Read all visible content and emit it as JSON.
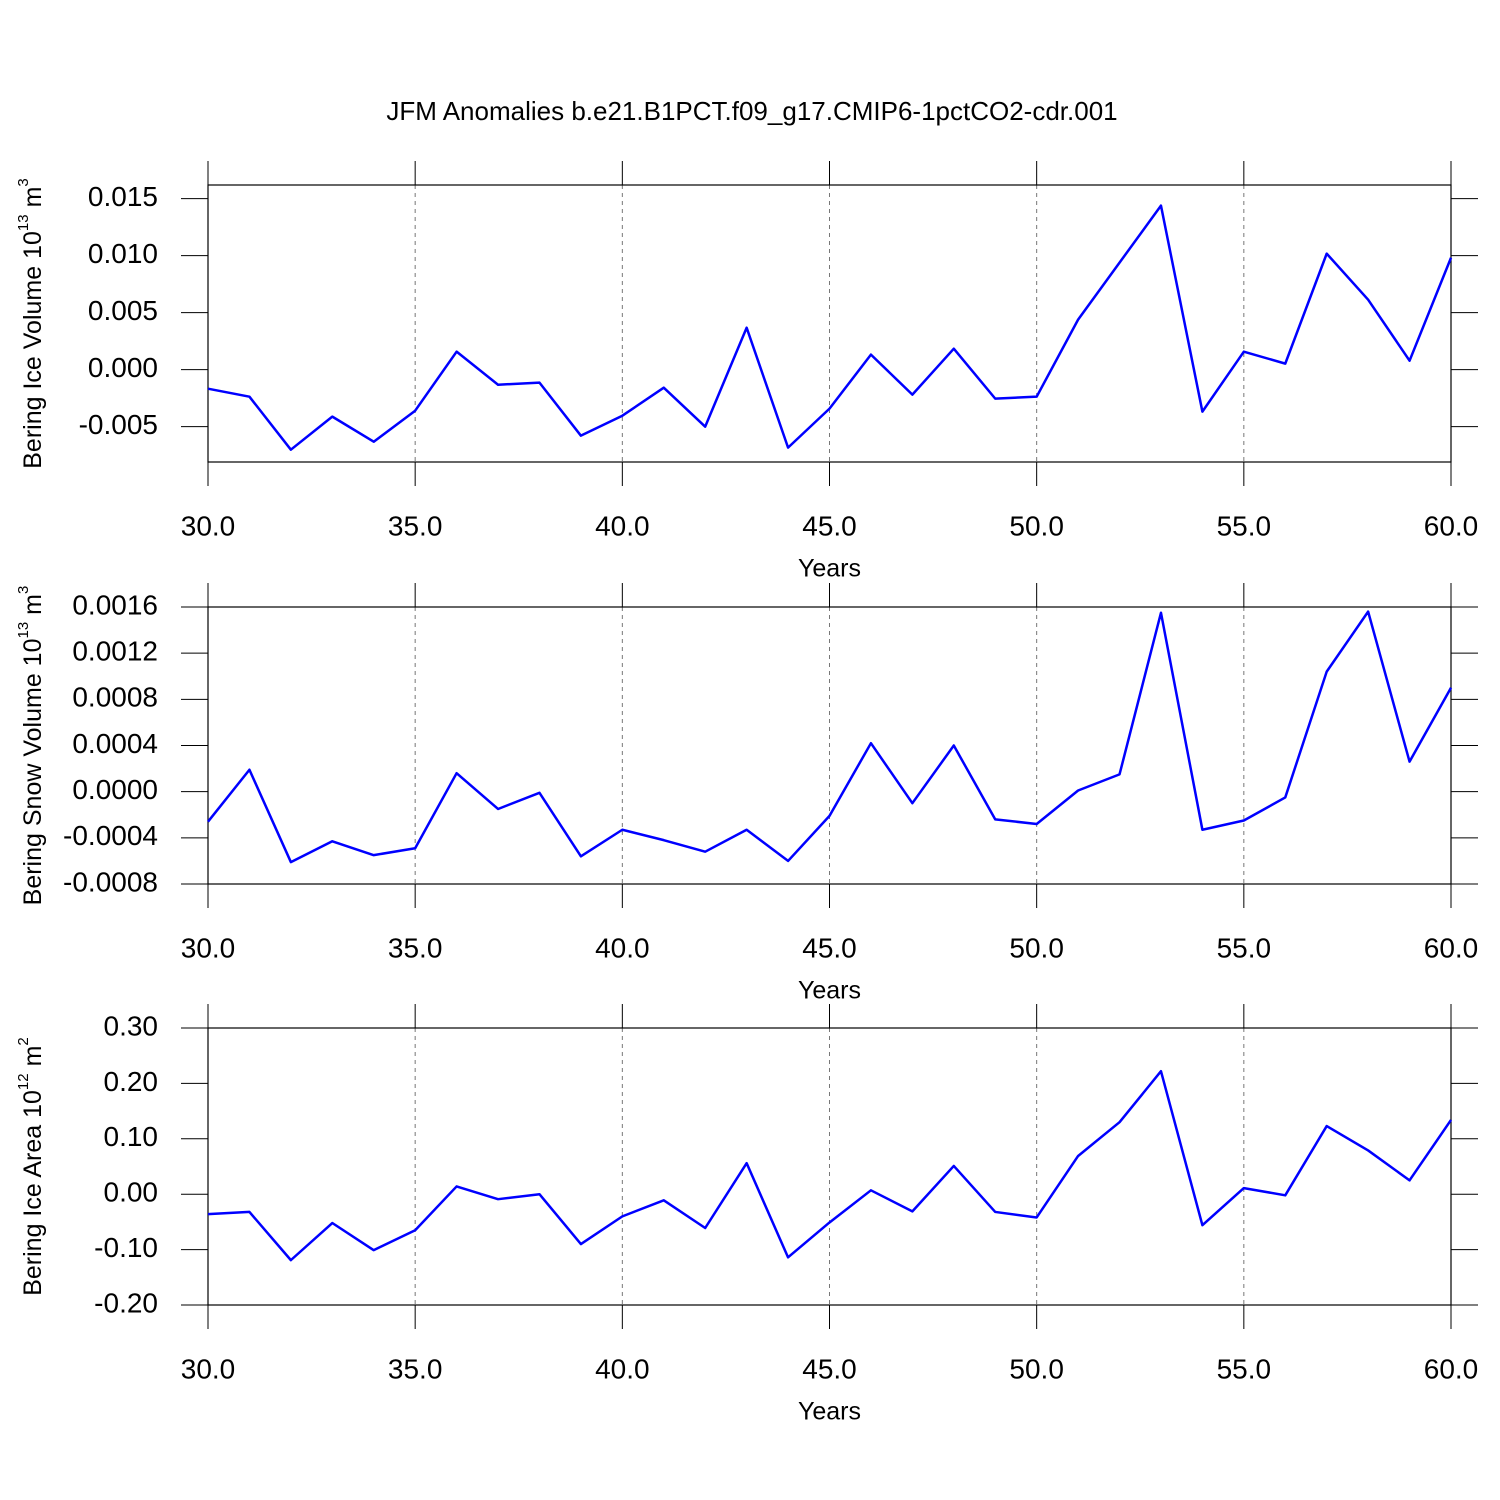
{
  "title": "JFM Anomalies b.e21.B1PCT.f09_g17.CMIP6-1pctCO2-cdr.001",
  "chart_data": [
    {
      "type": "line",
      "xlabel": "Years",
      "ylabel": {
        "text": "Bering Ice Volume 10",
        "exponent": "13",
        "unit": "m",
        "unit_exponent": "3"
      },
      "x": [
        30,
        31,
        32,
        33,
        34,
        35,
        36,
        37,
        38,
        39,
        40,
        41,
        42,
        43,
        44,
        45,
        46,
        47,
        48,
        49,
        50,
        51,
        52,
        53,
        54,
        55,
        56,
        57,
        58,
        59,
        60
      ],
      "series": [
        {
          "color": "#0000ff",
          "values": [
            -0.00167,
            -0.00237,
            -0.00702,
            -0.00412,
            -0.00632,
            -0.0036,
            0.00158,
            -0.00132,
            -0.00114,
            -0.00579,
            -0.00404,
            -0.00158,
            -0.005,
            0.00368,
            -0.00684,
            -0.00342,
            0.00132,
            -0.00219,
            0.00184,
            -0.00254,
            -0.00237,
            0.00439,
            0.00939,
            0.01439,
            -0.00368,
            0.00158,
            0.00053,
            0.01018,
            0.00614,
            0.00079,
            0.00982
          ]
        }
      ],
      "xlim": [
        30,
        60
      ],
      "xticks": [
        {
          "value": 30,
          "label": "30.0"
        },
        {
          "value": 35,
          "label": "35.0"
        },
        {
          "value": 40,
          "label": "40.0"
        },
        {
          "value": 45,
          "label": "45.0"
        },
        {
          "value": 50,
          "label": "50.0"
        },
        {
          "value": 55,
          "label": "55.0"
        },
        {
          "value": 60,
          "label": "60.0"
        }
      ],
      "ylim": [
        -0.0081,
        0.0162
      ],
      "yticks": [
        0.015,
        {
          "value": 0.01,
          "label": "0.010"
        },
        0.005,
        {
          "value": 0,
          "label": "0.000"
        },
        -0.005
      ],
      "grid": "x-dashed"
    },
    {
      "type": "line",
      "xlabel": "Years",
      "ylabel": {
        "text": "Bering Snow Volume 10",
        "exponent": "13",
        "unit": "m",
        "unit_exponent": "3"
      },
      "x": [
        30,
        31,
        32,
        33,
        34,
        35,
        36,
        37,
        38,
        39,
        40,
        41,
        42,
        43,
        44,
        45,
        46,
        47,
        48,
        49,
        50,
        51,
        52,
        53,
        54,
        55,
        56,
        57,
        58,
        59,
        60
      ],
      "series": [
        {
          "color": "#0000ff",
          "values": [
            -0.00026,
            0.00019,
            -0.00061,
            -0.00043,
            -0.00055,
            -0.00049,
            0.00016,
            -0.00015,
            -1e-05,
            -0.00056,
            -0.00033,
            -0.00042,
            -0.00052,
            -0.00033,
            -0.0006,
            -0.00021,
            0.00042,
            -0.0001,
            0.0004,
            -0.00024,
            -0.00028,
            1e-05,
            0.00015,
            0.00155,
            -0.00033,
            -0.00025,
            -5e-05,
            0.00104,
            0.00156,
            0.00026,
            0.0009
          ]
        }
      ],
      "xlim": [
        30,
        60
      ],
      "xticks": [
        {
          "value": 30,
          "label": "30.0"
        },
        {
          "value": 35,
          "label": "35.0"
        },
        {
          "value": 40,
          "label": "40.0"
        },
        {
          "value": 45,
          "label": "45.0"
        },
        {
          "value": 50,
          "label": "50.0"
        },
        {
          "value": 55,
          "label": "55.0"
        },
        {
          "value": 60,
          "label": "60.0"
        }
      ],
      "ylim": [
        -0.0008,
        0.0016
      ],
      "yticks": [
        0.0016,
        0.0012,
        0.0008,
        0.0004,
        {
          "value": 0,
          "label": "0.0000"
        },
        -0.0004,
        -0.0008
      ],
      "grid": "x-dashed"
    },
    {
      "type": "line",
      "xlabel": "Years",
      "ylabel": {
        "text": "Bering Ice Area 10",
        "exponent": "12",
        "unit": "m",
        "unit_exponent": "2"
      },
      "x": [
        30,
        31,
        32,
        33,
        34,
        35,
        36,
        37,
        38,
        39,
        40,
        41,
        42,
        43,
        44,
        45,
        46,
        47,
        48,
        49,
        50,
        51,
        52,
        53,
        54,
        55,
        56,
        57,
        58,
        59,
        60
      ],
      "series": [
        {
          "color": "#0000ff",
          "values": [
            -0.036,
            -0.032,
            -0.119,
            -0.052,
            -0.101,
            -0.065,
            0.014,
            -0.009,
            0.0,
            -0.09,
            -0.04,
            -0.011,
            -0.061,
            0.056,
            -0.114,
            -0.051,
            0.007,
            -0.031,
            0.051,
            -0.032,
            -0.042,
            0.069,
            0.13,
            0.222,
            -0.056,
            0.011,
            -0.002,
            0.123,
            0.079,
            0.025,
            0.134
          ]
        }
      ],
      "xlim": [
        30,
        60
      ],
      "xticks": [
        {
          "value": 30,
          "label": "30.0"
        },
        {
          "value": 35,
          "label": "35.0"
        },
        {
          "value": 40,
          "label": "40.0"
        },
        {
          "value": 45,
          "label": "45.0"
        },
        {
          "value": 50,
          "label": "50.0"
        },
        {
          "value": 55,
          "label": "55.0"
        },
        {
          "value": 60,
          "label": "60.0"
        }
      ],
      "ylim": [
        -0.2,
        0.3
      ],
      "yticks": [
        {
          "value": 0.3,
          "label": "0.30"
        },
        {
          "value": 0.2,
          "label": "0.20"
        },
        {
          "value": 0.1,
          "label": "0.10"
        },
        {
          "value": 0,
          "label": "0.00"
        },
        {
          "value": -0.1,
          "label": "-0.10"
        },
        {
          "value": -0.2,
          "label": "-0.20"
        }
      ],
      "grid": "x-dashed"
    }
  ]
}
